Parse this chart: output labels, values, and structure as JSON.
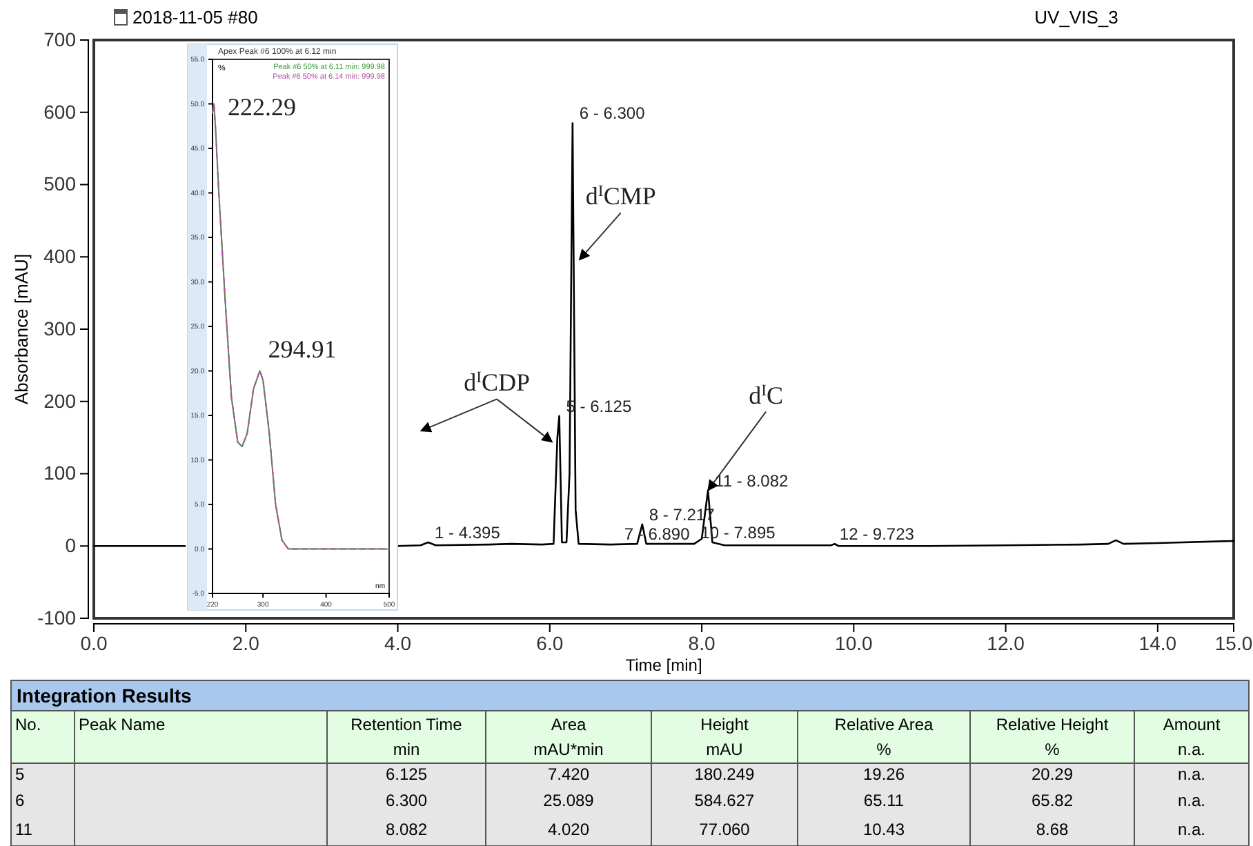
{
  "chart_data": [
    {
      "type": "line",
      "title": "2018-11-05 #80",
      "subtitle": "UV_VIS_3",
      "xlabel": "Time [min]",
      "ylabel": "Absorbance [mAU]",
      "xlim": [
        0,
        15
      ],
      "ylim": [
        -100,
        700
      ],
      "xticks": [
        {
          "value": 0,
          "label": "0.0"
        },
        {
          "value": 2,
          "label": "2.0"
        },
        {
          "value": 4,
          "label": "4.0"
        },
        {
          "value": 6,
          "label": "6.0"
        },
        {
          "value": 8,
          "label": "8.0"
        },
        {
          "value": 10,
          "label": "10.0"
        },
        {
          "value": 12,
          "label": "12.0"
        },
        {
          "value": 14,
          "label": "14.0"
        },
        {
          "value": 15,
          "label": "15.0"
        }
      ],
      "yticks": [
        -100,
        0,
        100,
        200,
        300,
        400,
        500,
        600,
        700
      ],
      "x": [
        0,
        0.6,
        1.2,
        1.25,
        4.0,
        4.3,
        4.4,
        4.5,
        5.2,
        5.5,
        5.9,
        6.05,
        6.1,
        6.125,
        6.16,
        6.22,
        6.26,
        6.3,
        6.34,
        6.38,
        6.8,
        7.15,
        7.217,
        7.27,
        7.9,
        8.0,
        8.082,
        8.14,
        8.3,
        9.7,
        9.75,
        9.8,
        11,
        12,
        13,
        13.35,
        13.45,
        13.55,
        14,
        15
      ],
      "series": [
        {
          "color": "#000000",
          "values": [
            0,
            0,
            0,
            null,
            0,
            1,
            5,
            1,
            2,
            3,
            2,
            3,
            150,
            180,
            5,
            5,
            100,
            585,
            50,
            3,
            2,
            3,
            30,
            3,
            3,
            10,
            77,
            5,
            1,
            1,
            3,
            0,
            0,
            1,
            2,
            3,
            8,
            3,
            4,
            7
          ]
        }
      ],
      "annotations": [
        {
          "text": "1 - 4.395",
          "x": 4.395,
          "y": 5
        },
        {
          "text": "5 - 6.125",
          "x": 6.125,
          "y": 180
        },
        {
          "text": "6 - 6.300",
          "x": 6.3,
          "y": 585
        },
        {
          "text": "7 - 6.890",
          "x": 6.89,
          "y": 3
        },
        {
          "text": "8 - 7.217",
          "x": 7.217,
          "y": 30
        },
        {
          "text": "10 - 7.895",
          "x": 7.895,
          "y": 5
        },
        {
          "text": "11 - 8.082",
          "x": 8.082,
          "y": 77
        },
        {
          "text": "12 - 9.723",
          "x": 9.723,
          "y": 3
        },
        {
          "text": "d$^{I}$CDP",
          "x": 6.03,
          "y": 144
        },
        {
          "text": "d$^{I}$CMP",
          "x": 6.39,
          "y": 396
        },
        {
          "text": "d$^{I}$C",
          "x": 8.082,
          "y": 77
        }
      ]
    },
    {
      "type": "line",
      "title": "Apex Peak #6 100% at 6.12 min",
      "xlabel": "nm",
      "ylabel": "%",
      "xlim": [
        220,
        500
      ],
      "ylim": [
        -5,
        55
      ],
      "xticks": [
        220,
        300,
        400,
        500
      ],
      "yticks": [
        {
          "value": -5,
          "label": "-5.0"
        },
        {
          "value": 0,
          "label": "0.0"
        },
        {
          "value": 5,
          "label": "5.0"
        },
        {
          "value": 10,
          "label": "10.0"
        },
        {
          "value": 15,
          "label": "15.0"
        },
        {
          "value": 20,
          "label": "20.0"
        },
        {
          "value": 25,
          "label": "25.0"
        },
        {
          "value": 30,
          "label": "30.0"
        },
        {
          "value": 35,
          "label": "35.0"
        },
        {
          "value": 40,
          "label": "40.0"
        },
        {
          "value": 45,
          "label": "45.0"
        },
        {
          "value": 50,
          "label": "50.0"
        },
        {
          "value": 55,
          "label": "55.0"
        }
      ],
      "legend": "top right",
      "x": [
        220,
        222.29,
        225,
        230,
        240,
        250,
        260,
        267,
        275,
        285,
        294.91,
        300,
        310,
        320,
        330,
        340,
        400,
        500
      ],
      "series": [
        {
          "name": "Peak #6 50% at 6.11 min: 999.98",
          "color": "#3a9a3a",
          "values": [
            49,
            50,
            47,
            40,
            28,
            17,
            12,
            11.5,
            13,
            18,
            20,
            19,
            13,
            5,
            1,
            0,
            0,
            0
          ]
        },
        {
          "name": "Peak #6 50% at 6.14 min: 999.98",
          "color": "#b04fa0",
          "line_style": "dashed",
          "values": [
            49,
            50,
            47,
            40,
            28,
            17,
            12,
            11.5,
            13,
            18,
            20,
            19,
            13,
            5,
            1,
            0,
            0,
            0
          ]
        }
      ],
      "annotations": [
        {
          "text": "222.29",
          "x": 222.29,
          "y": 50
        },
        {
          "text": "294.91",
          "x": 294.91,
          "y": 20
        }
      ]
    },
    {
      "type": "other",
      "title": "Integration Results",
      "annotations": [
        "No.",
        "Peak Name",
        "Retention Time",
        "Area",
        "Height",
        "Relative Area",
        "Relative Height",
        "Amount",
        null,
        null,
        "min",
        "mAU*min",
        "mAU",
        "%",
        "%",
        "n.a.",
        "5",
        null,
        "6.125",
        "7.420",
        "180.249",
        "19.26",
        "20.29",
        "n.a.",
        "6",
        null,
        "6.300",
        "25.089",
        "584.627",
        "65.11",
        "65.82",
        "n.a.",
        "11",
        null,
        "8.082",
        "4.020",
        "77.060",
        "10.43",
        "8.68",
        "n.a."
      ]
    }
  ]
}
